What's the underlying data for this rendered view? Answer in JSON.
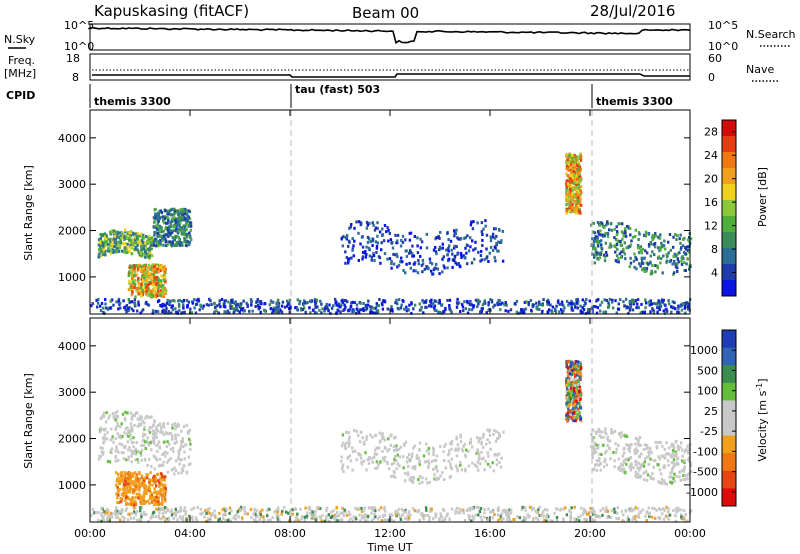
{
  "header": {
    "station": "Kapuskasing (fitACF)",
    "beam": "Beam 00",
    "date": "28/Jul/2016"
  },
  "side_labels": {
    "nsky": "N.Sky",
    "freq_line1": "Freq.",
    "freq_line2": "[MHz]",
    "cpid": "CPID",
    "nsearch": "N.Search",
    "nave": "Nave"
  },
  "noise_axis": {
    "ticks": [
      "10^5",
      "10^0"
    ]
  },
  "freq_axis": {
    "ticks_left": [
      "18",
      "8"
    ],
    "ticks_right": [
      "60",
      "0"
    ]
  },
  "cpid_segments": [
    {
      "label": "themis 3300",
      "start_h": 0,
      "end_h": 8
    },
    {
      "label": "tau (fast) 503",
      "start_h": 8,
      "end_h": 20
    },
    {
      "label": "themis 3300",
      "start_h": 20,
      "end_h": 24
    }
  ],
  "chart_data": [
    {
      "type": "heatmap",
      "name": "power",
      "ylabel": "Slant Range [km]",
      "ylim": [
        200,
        4600
      ],
      "yticks": [
        "1000",
        "2000",
        "3000",
        "4000"
      ],
      "xlim_hours": [
        0,
        24
      ],
      "colorbar": {
        "label": "Power [dB]",
        "ticks": [
          "4",
          "8",
          "12",
          "16",
          "20",
          "24",
          "28"
        ],
        "colors": [
          "#0a14e6",
          "#1e3ca8",
          "#2c6e96",
          "#3c8c5a",
          "#4fae3c",
          "#8cc83c",
          "#f0d21e",
          "#f0a01e",
          "#f07814",
          "#e63c14",
          "#d20a0a"
        ]
      },
      "echo_regions": [
        {
          "t": [
            0.3,
            2.5
          ],
          "r": [
            1400,
            1900
          ],
          "level": "mid-high"
        },
        {
          "t": [
            2.5,
            4.0
          ],
          "r": [
            1700,
            2500
          ],
          "level": "mid"
        },
        {
          "t": [
            1.5,
            3.0
          ],
          "r": [
            600,
            1300
          ],
          "level": "high"
        },
        {
          "t": [
            10.0,
            16.5
          ],
          "r": [
            1200,
            2100
          ],
          "level": "low"
        },
        {
          "t": [
            19.0,
            19.6
          ],
          "r": [
            2400,
            3700
          ],
          "level": "high"
        },
        {
          "t": [
            20.0,
            24.0
          ],
          "r": [
            1200,
            2100
          ],
          "level": "mid"
        },
        {
          "t": [
            0,
            24
          ],
          "r": [
            200,
            550
          ],
          "level": "mixed"
        }
      ]
    },
    {
      "type": "heatmap",
      "name": "velocity",
      "ylabel": "Slant Range [km]",
      "xlabel": "Time UT",
      "ylim": [
        200,
        4600
      ],
      "yticks": [
        "1000",
        "2000",
        "3000",
        "4000"
      ],
      "xlim_hours": [
        0,
        24
      ],
      "xticks": [
        "00:00",
        "04:00",
        "08:00",
        "12:00",
        "16:00",
        "20:00",
        "00:00"
      ],
      "colorbar": {
        "label": "Velocity [m s^-1]",
        "ticks": [
          "1000",
          "500",
          "100",
          "25",
          "-25",
          "-100",
          "-500",
          "-1000"
        ],
        "colors": [
          "#1e3cb4",
          "#3264b4",
          "#3c8c50",
          "#64be3c",
          "#c8c8c8",
          "#c8c8c8",
          "#f0a01e",
          "#f07814",
          "#e64614",
          "#dc0a0a"
        ]
      },
      "echo_regions": [
        {
          "t": [
            0.3,
            4.0
          ],
          "r": [
            1400,
            2500
          ],
          "level": "near-zero"
        },
        {
          "t": [
            1.0,
            3.0
          ],
          "r": [
            600,
            1300
          ],
          "level": "strong-negative"
        },
        {
          "t": [
            10.0,
            16.5
          ],
          "r": [
            1200,
            2100
          ],
          "level": "near-zero"
        },
        {
          "t": [
            19.0,
            19.6
          ],
          "r": [
            2400,
            3700
          ],
          "level": "mixed"
        },
        {
          "t": [
            20.0,
            24.0
          ],
          "r": [
            1200,
            2100
          ],
          "level": "near-zero"
        },
        {
          "t": [
            0,
            24
          ],
          "r": [
            200,
            550
          ],
          "level": "mixed-near-zero"
        }
      ]
    }
  ]
}
